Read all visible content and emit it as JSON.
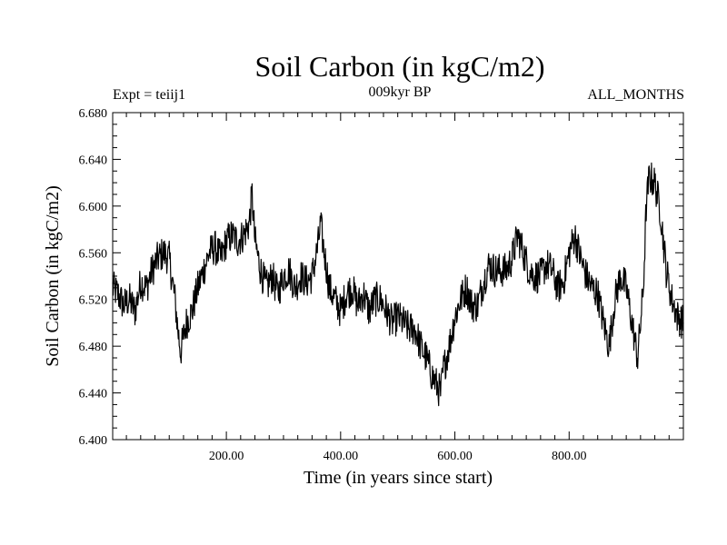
{
  "chart_data": {
    "type": "line",
    "title": "Soil Carbon (in kgC/m2)",
    "subtitle": "009kyr BP",
    "left_label": "Expt = teiij1",
    "right_label": "ALL_MONTHS",
    "xlabel": "Time (in years since start)",
    "ylabel": "Soil Carbon (in kgC/m2)",
    "xlim": [
      1,
      1000
    ],
    "ylim": [
      6.4,
      6.68
    ],
    "xticks": [
      200,
      400,
      600,
      800
    ],
    "xtick_labels": [
      "200.00",
      "400.00",
      "600.00",
      "800.00"
    ],
    "yticks": [
      6.4,
      6.44,
      6.48,
      6.52,
      6.56,
      6.6,
      6.64,
      6.68
    ],
    "ytick_labels": [
      "6.400",
      "6.440",
      "6.480",
      "6.520",
      "6.560",
      "6.600",
      "6.640",
      "6.680"
    ],
    "grid": false,
    "series": [
      {
        "color": "#000000",
        "x": [
          1,
          10,
          20,
          30,
          40,
          50,
          60,
          70,
          80,
          90,
          100,
          110,
          115,
          120,
          130,
          140,
          150,
          160,
          170,
          180,
          190,
          200,
          210,
          220,
          230,
          240,
          245,
          250,
          260,
          270,
          280,
          290,
          300,
          310,
          320,
          330,
          340,
          350,
          360,
          365,
          370,
          380,
          390,
          400,
          410,
          420,
          430,
          440,
          450,
          460,
          470,
          480,
          490,
          500,
          510,
          520,
          530,
          540,
          550,
          560,
          570,
          575,
          580,
          590,
          600,
          610,
          620,
          630,
          640,
          650,
          660,
          670,
          680,
          690,
          700,
          710,
          720,
          730,
          740,
          750,
          760,
          770,
          780,
          790,
          800,
          810,
          820,
          830,
          840,
          850,
          860,
          870,
          880,
          890,
          900,
          910,
          920,
          930,
          935,
          940,
          950,
          960,
          970,
          980,
          990,
          1000
        ],
        "values": [
          6.53,
          6.525,
          6.515,
          6.52,
          6.51,
          6.535,
          6.53,
          6.545,
          6.555,
          6.56,
          6.555,
          6.52,
          6.495,
          6.475,
          6.5,
          6.51,
          6.53,
          6.545,
          6.56,
          6.565,
          6.555,
          6.57,
          6.575,
          6.57,
          6.575,
          6.585,
          6.61,
          6.57,
          6.545,
          6.53,
          6.54,
          6.525,
          6.54,
          6.545,
          6.53,
          6.54,
          6.535,
          6.54,
          6.565,
          6.585,
          6.565,
          6.53,
          6.52,
          6.51,
          6.525,
          6.53,
          6.515,
          6.525,
          6.51,
          6.52,
          6.52,
          6.51,
          6.5,
          6.505,
          6.5,
          6.495,
          6.495,
          6.48,
          6.47,
          6.455,
          6.445,
          6.44,
          6.46,
          6.48,
          6.505,
          6.52,
          6.53,
          6.515,
          6.515,
          6.535,
          6.55,
          6.545,
          6.545,
          6.545,
          6.555,
          6.575,
          6.56,
          6.545,
          6.54,
          6.54,
          6.55,
          6.545,
          6.53,
          6.535,
          6.56,
          6.575,
          6.555,
          6.54,
          6.53,
          6.525,
          6.5,
          6.48,
          6.52,
          6.54,
          6.53,
          6.5,
          6.47,
          6.53,
          6.6,
          6.625,
          6.62,
          6.595,
          6.545,
          6.52,
          6.505,
          6.5
        ]
      }
    ]
  }
}
